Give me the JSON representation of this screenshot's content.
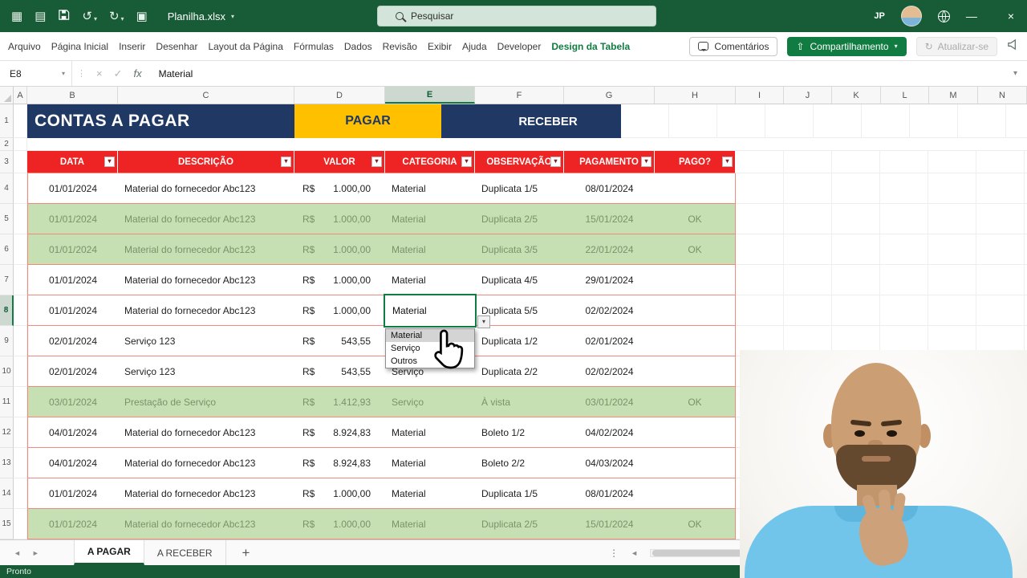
{
  "window": {
    "title": "Planilha.xlsx",
    "search_placeholder": "Pesquisar",
    "user_initials": "JP",
    "status": "Pronto"
  },
  "ribbon": {
    "tabs": [
      "Arquivo",
      "Página Inicial",
      "Inserir",
      "Desenhar",
      "Layout da Página",
      "Fórmulas",
      "Dados",
      "Revisão",
      "Exibir",
      "Ajuda",
      "Developer",
      "Design da Tabela"
    ],
    "active_tab": "Design da Tabela",
    "comments": "Comentários",
    "share": "Compartilhamento",
    "update": "Atualizar-se"
  },
  "formula_bar": {
    "name_box": "E8",
    "fx": "fx",
    "value": "Material"
  },
  "grid": {
    "column_letters": [
      "A",
      "B",
      "C",
      "D",
      "E",
      "F",
      "G",
      "H",
      "I",
      "J",
      "K",
      "L",
      "M",
      "N"
    ],
    "row_numbers": [
      "1",
      "2",
      "3",
      "4",
      "5",
      "6",
      "7",
      "8",
      "9",
      "10",
      "11",
      "12",
      "13",
      "14",
      "15"
    ],
    "selected_cell": "E8"
  },
  "banner": {
    "title": "CONTAS A PAGAR",
    "pagar": "PAGAR",
    "receber": "RECEBER"
  },
  "table": {
    "headers": [
      "DATA",
      "DESCRIÇÃO",
      "VALOR",
      "CATEGORIA",
      "OBSERVAÇÃO",
      "PAGAMENTO",
      "PAGO?"
    ],
    "currency": "R$",
    "rows": [
      {
        "date": "01/01/2024",
        "desc": "Material do fornecedor Abc123",
        "value": "1.000,00",
        "cat": "Material",
        "obs": "Duplicata 1/5",
        "pay": "08/01/2024",
        "paid": ""
      },
      {
        "date": "01/01/2024",
        "desc": "Material do fornecedor Abc123",
        "value": "1.000,00",
        "cat": "Material",
        "obs": "Duplicata 2/5",
        "pay": "15/01/2024",
        "paid": "OK"
      },
      {
        "date": "01/01/2024",
        "desc": "Material do fornecedor Abc123",
        "value": "1.000,00",
        "cat": "Material",
        "obs": "Duplicata 3/5",
        "pay": "22/01/2024",
        "paid": "OK"
      },
      {
        "date": "01/01/2024",
        "desc": "Material do fornecedor Abc123",
        "value": "1.000,00",
        "cat": "Material",
        "obs": "Duplicata 4/5",
        "pay": "29/01/2024",
        "paid": ""
      },
      {
        "date": "01/01/2024",
        "desc": "Material do fornecedor Abc123",
        "value": "1.000,00",
        "cat": "Material",
        "obs": "Duplicata 5/5",
        "pay": "02/02/2024",
        "paid": ""
      },
      {
        "date": "02/01/2024",
        "desc": "Serviço 123",
        "value": "543,55",
        "cat": "",
        "obs": "Duplicata 1/2",
        "pay": "02/01/2024",
        "paid": ""
      },
      {
        "date": "02/01/2024",
        "desc": "Serviço 123",
        "value": "543,55",
        "cat": "Serviço",
        "obs": "Duplicata 2/2",
        "pay": "02/02/2024",
        "paid": ""
      },
      {
        "date": "03/01/2024",
        "desc": "Prestação de Serviço",
        "value": "1.412,93",
        "cat": "Serviço",
        "obs": "À vista",
        "pay": "03/01/2024",
        "paid": "OK"
      },
      {
        "date": "04/01/2024",
        "desc": "Material do fornecedor Abc123",
        "value": "8.924,83",
        "cat": "Material",
        "obs": "Boleto 1/2",
        "pay": "04/02/2024",
        "paid": ""
      },
      {
        "date": "04/01/2024",
        "desc": "Material do fornecedor Abc123",
        "value": "8.924,83",
        "cat": "Material",
        "obs": "Boleto 2/2",
        "pay": "04/03/2024",
        "paid": ""
      },
      {
        "date": "01/01/2024",
        "desc": "Material do fornecedor Abc123",
        "value": "1.000,00",
        "cat": "Material",
        "obs": "Duplicata 1/5",
        "pay": "08/01/2024",
        "paid": ""
      },
      {
        "date": "01/01/2024",
        "desc": "Material do fornecedor Abc123",
        "value": "1.000,00",
        "cat": "Material",
        "obs": "Duplicata 2/5",
        "pay": "15/01/2024",
        "paid": "OK"
      }
    ]
  },
  "dropdown": {
    "cell_value": "Material",
    "items": [
      "Material",
      "Serviço",
      "Outros"
    ],
    "highlighted": "Material"
  },
  "sheet_tabs": {
    "tabs": [
      "A PAGAR",
      "A RECEBER"
    ],
    "add": "+",
    "active": "A PAGAR"
  },
  "icons": {
    "grid": "▦",
    "sheet": "▤",
    "tool": "▣",
    "undo": "↺",
    "redo": "↻",
    "sync": "↻",
    "chevron_down": "▾",
    "filter": "▾",
    "minimize": "—",
    "close": "×",
    "cancel": "×",
    "confirm": "✓",
    "dots_vertical": "⋮",
    "nav_left": "◄",
    "nav_right": "►",
    "share_arrow": "⇧"
  },
  "colors": {
    "titlebar_green": "#185C37",
    "accent_green": "#107C41",
    "banner_blue": "#1F3864",
    "pagar_yellow": "#FFC000",
    "header_red": "#EE2424",
    "row_green": "#C6E0B4"
  }
}
